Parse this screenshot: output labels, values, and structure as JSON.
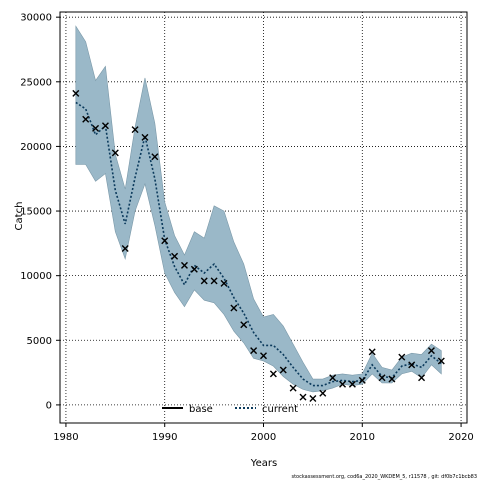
{
  "chart_data": {
    "type": "line",
    "xlabel": "Years",
    "ylabel": "Catch",
    "xlim": [
      1979.4,
      2020.6
    ],
    "ylim": [
      -1400,
      30400
    ],
    "xticks": [
      1980,
      1990,
      2000,
      2010,
      2020
    ],
    "yticks": [
      0,
      5000,
      10000,
      15000,
      20000,
      25000,
      30000
    ],
    "grid": true,
    "grid_style": "dotted",
    "legend_placement": "bottom-center",
    "colors": {
      "band": "#9ab8c8",
      "band_edge": "#7a98a8",
      "current_line": "#0b3a5c",
      "base_line": "#000000",
      "marker": "#000000"
    },
    "band": {
      "x": [
        1981,
        1982,
        1983,
        1984,
        1985,
        1986,
        1987,
        1988,
        1989,
        1990,
        1991,
        1992,
        1993,
        1994,
        1995,
        1996,
        1997,
        1998,
        1999,
        2000,
        2001,
        2002,
        2003,
        2004,
        2005,
        2006,
        2007,
        2008,
        2009,
        2010,
        2011,
        2012,
        2013,
        2014,
        2015,
        2016,
        2017,
        2018
      ],
      "upper": [
        29300,
        28100,
        25100,
        26200,
        19400,
        16700,
        21500,
        25300,
        21800,
        15700,
        13100,
        11600,
        13400,
        12900,
        15400,
        15000,
        12600,
        10900,
        8200,
        6800,
        7000,
        6100,
        4700,
        3300,
        2000,
        2000,
        2300,
        2400,
        2300,
        2400,
        4000,
        2900,
        2700,
        3700,
        4000,
        3900,
        4700,
        4200
      ],
      "lower": [
        18600,
        18600,
        17300,
        17900,
        13400,
        11300,
        15000,
        17100,
        13900,
        10200,
        8700,
        7600,
        8900,
        8100,
        7900,
        7000,
        5700,
        4800,
        3600,
        3400,
        3000,
        2200,
        1600,
        1200,
        1000,
        1100,
        1300,
        1600,
        1500,
        1600,
        2400,
        1700,
        1700,
        2400,
        2600,
        2100,
        3100,
        2400
      ]
    },
    "series": [
      {
        "name": "base",
        "x": [],
        "values": []
      },
      {
        "name": "current",
        "x": [
          1981,
          1982,
          1983,
          1984,
          1985,
          1986,
          1987,
          1988,
          1989,
          1990,
          1991,
          1992,
          1993,
          1994,
          1995,
          1996,
          1997,
          1998,
          1999,
          2000,
          2001,
          2002,
          2003,
          2004,
          2005,
          2006,
          2007,
          2008,
          2009,
          2010,
          2011,
          2012,
          2013,
          2014,
          2015,
          2016,
          2017,
          2018
        ],
        "values": [
          23400,
          22900,
          20900,
          21600,
          16600,
          14000,
          17600,
          20800,
          17500,
          12800,
          10700,
          9300,
          10800,
          10200,
          10900,
          9800,
          8300,
          7100,
          5600,
          4600,
          4600,
          3900,
          2900,
          2000,
          1500,
          1500,
          1800,
          1900,
          1800,
          1900,
          3100,
          2200,
          2100,
          3000,
          3200,
          2900,
          3800,
          3200
        ]
      }
    ],
    "observed": {
      "x": [
        1981,
        1982,
        1983,
        1984,
        1985,
        1986,
        1987,
        1988,
        1989,
        1990,
        1991,
        1992,
        1993,
        1994,
        1995,
        1996,
        1997,
        1998,
        1999,
        2000,
        2001,
        2002,
        2003,
        2004,
        2005,
        2006,
        2007,
        2008,
        2009,
        2010,
        2011,
        2012,
        2013,
        2014,
        2015,
        2016,
        2017,
        2018
      ],
      "values": [
        24100,
        22100,
        21400,
        21600,
        19500,
        12100,
        21300,
        20700,
        19200,
        12700,
        11500,
        10800,
        10500,
        9600,
        9600,
        9400,
        7500,
        6200,
        4200,
        3800,
        2400,
        2700,
        1300,
        600,
        500,
        900,
        2100,
        1600,
        1600,
        1900,
        4100,
        2100,
        2000,
        3700,
        3100,
        2100,
        4200,
        3400
      ]
    }
  },
  "legend": {
    "items": [
      {
        "label": "base",
        "style": "solid"
      },
      {
        "label": "current",
        "style": "dotted"
      }
    ]
  },
  "footer": {
    "text": "stockassessment.org, cod6a_2020_WKDEM_5, r11578 , git: df0b7c1bcb83"
  }
}
